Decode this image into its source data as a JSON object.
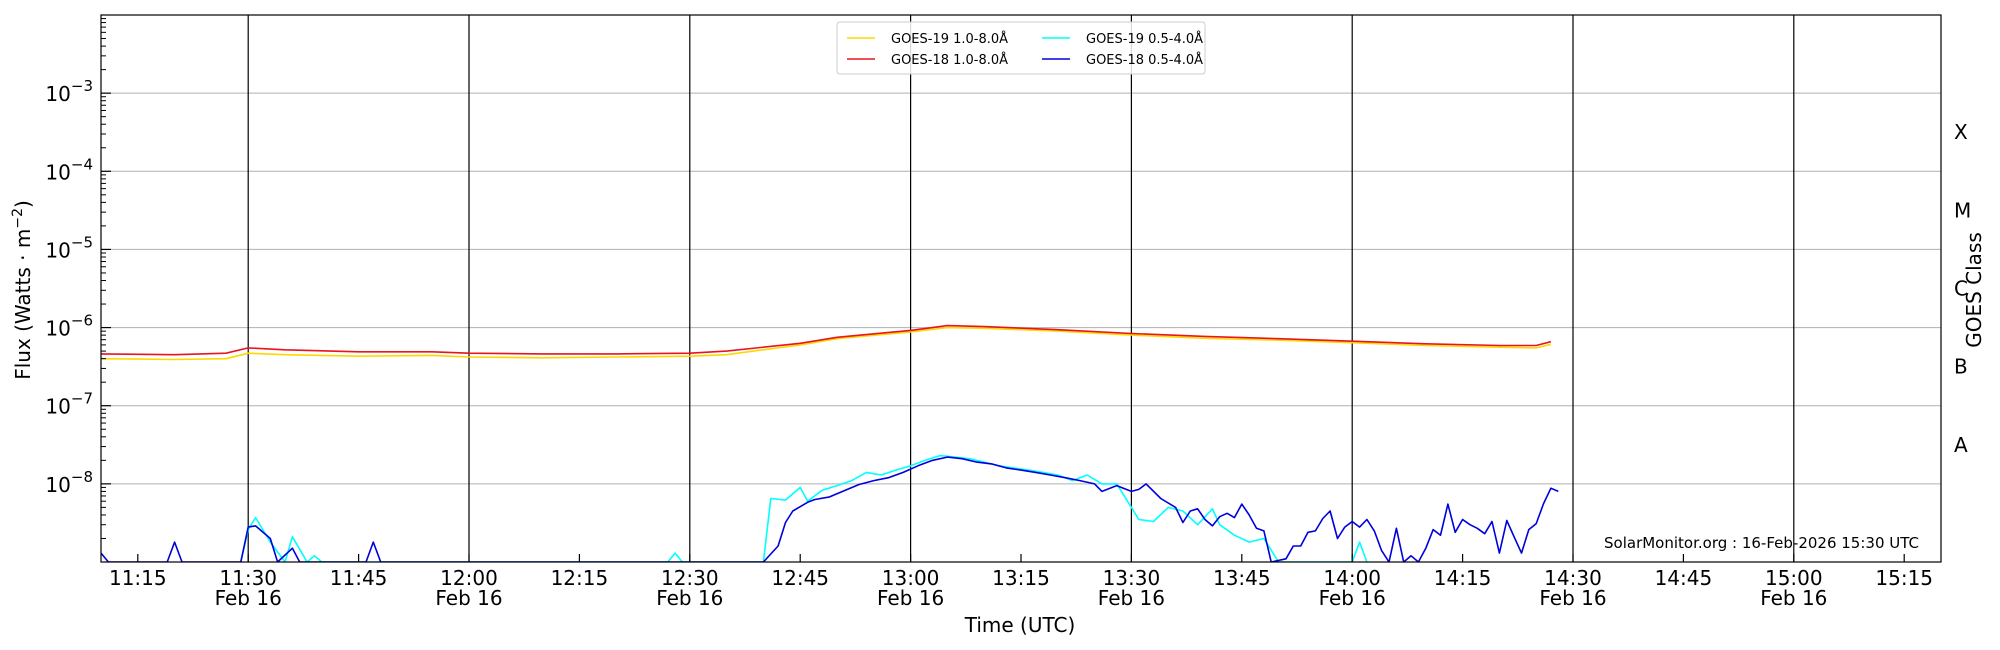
{
  "chart_data": {
    "type": "line",
    "xlabel": "Time (UTC)",
    "ylabel_parts": [
      "Flux (Watts · m",
      "−2",
      ")"
    ],
    "y2label": "GOES Class",
    "credit": "SolarMonitor.org : 16-Feb-2026 15:30 UTC",
    "y_scale": "log",
    "ylim": [
      1e-09,
      0.01
    ],
    "xlim": [
      "11:10",
      "15:20"
    ],
    "grid": "horizontal",
    "legend_position": "top-center",
    "x_ticks": [
      {
        "t": "11:15",
        "label": "11:15",
        "sub": ""
      },
      {
        "t": "11:30",
        "label": "11:30",
        "sub": "Feb 16"
      },
      {
        "t": "11:45",
        "label": "11:45",
        "sub": ""
      },
      {
        "t": "12:00",
        "label": "12:00",
        "sub": "Feb 16"
      },
      {
        "t": "12:15",
        "label": "12:15",
        "sub": ""
      },
      {
        "t": "12:30",
        "label": "12:30",
        "sub": "Feb 16"
      },
      {
        "t": "12:45",
        "label": "12:45",
        "sub": ""
      },
      {
        "t": "13:00",
        "label": "13:00",
        "sub": "Feb 16"
      },
      {
        "t": "13:15",
        "label": "13:15",
        "sub": ""
      },
      {
        "t": "13:30",
        "label": "13:30",
        "sub": "Feb 16"
      },
      {
        "t": "13:45",
        "label": "13:45",
        "sub": ""
      },
      {
        "t": "14:00",
        "label": "14:00",
        "sub": "Feb 16"
      },
      {
        "t": "14:15",
        "label": "14:15",
        "sub": ""
      },
      {
        "t": "14:30",
        "label": "14:30",
        "sub": "Feb 16"
      },
      {
        "t": "14:45",
        "label": "14:45",
        "sub": ""
      },
      {
        "t": "15:00",
        "label": "15:00",
        "sub": "Feb 16"
      },
      {
        "t": "15:15",
        "label": "15:15",
        "sub": ""
      }
    ],
    "y_ticks": [
      {
        "exp": -8,
        "label": "10",
        "sup": "−8"
      },
      {
        "exp": -7,
        "label": "10",
        "sup": "−7"
      },
      {
        "exp": -6,
        "label": "10",
        "sup": "−6"
      },
      {
        "exp": -5,
        "label": "10",
        "sup": "−5"
      },
      {
        "exp": -4,
        "label": "10",
        "sup": "−4"
      },
      {
        "exp": -3,
        "label": "10",
        "sup": "−3"
      }
    ],
    "goes_classes": [
      {
        "label": "A",
        "exp": -7.5
      },
      {
        "label": "B",
        "exp": -6.5
      },
      {
        "label": "C",
        "exp": -5.5
      },
      {
        "label": "M",
        "exp": -4.5
      },
      {
        "label": "X",
        "exp": -3.5
      }
    ],
    "vlines": [
      "11:30",
      "12:00",
      "12:30",
      "13:00",
      "13:30",
      "14:00",
      "14:30",
      "15:00"
    ],
    "colors": {
      "gold": "#FFD700",
      "red": "#E8141E",
      "cyan": "#00FFFF",
      "blue": "#0000DD",
      "grid": "#b0b0b0"
    },
    "series": [
      {
        "name": "GOES-19 1.0-8.0Å",
        "color": "#FFD700",
        "points": [
          [
            "11:10",
            4e-07
          ],
          [
            "11:20",
            3.9e-07
          ],
          [
            "11:27",
            4e-07
          ],
          [
            "11:30",
            4.7e-07
          ],
          [
            "11:35",
            4.5e-07
          ],
          [
            "11:45",
            4.3e-07
          ],
          [
            "11:55",
            4.4e-07
          ],
          [
            "12:00",
            4.2e-07
          ],
          [
            "12:10",
            4.1e-07
          ],
          [
            "12:20",
            4.2e-07
          ],
          [
            "12:30",
            4.3e-07
          ],
          [
            "12:35",
            4.5e-07
          ],
          [
            "12:45",
            6e-07
          ],
          [
            "12:50",
            7.2e-07
          ],
          [
            "13:00",
            8.8e-07
          ],
          [
            "13:05",
            1e-06
          ],
          [
            "13:10",
            9.8e-07
          ],
          [
            "13:20",
            9e-07
          ],
          [
            "13:30",
            8e-07
          ],
          [
            "13:40",
            7.3e-07
          ],
          [
            "13:50",
            6.9e-07
          ],
          [
            "14:00",
            6.4e-07
          ],
          [
            "14:10",
            5.9e-07
          ],
          [
            "14:20",
            5.6e-07
          ],
          [
            "14:25",
            5.5e-07
          ],
          [
            "14:27",
            6.1e-07
          ]
        ]
      },
      {
        "name": "GOES-18 1.0-8.0Å",
        "color": "#E8141E",
        "points": [
          [
            "11:10",
            4.6e-07
          ],
          [
            "11:20",
            4.5e-07
          ],
          [
            "11:27",
            4.7e-07
          ],
          [
            "11:30",
            5.5e-07
          ],
          [
            "11:35",
            5.2e-07
          ],
          [
            "11:45",
            4.9e-07
          ],
          [
            "11:55",
            4.9e-07
          ],
          [
            "12:00",
            4.7e-07
          ],
          [
            "12:10",
            4.6e-07
          ],
          [
            "12:20",
            4.6e-07
          ],
          [
            "12:30",
            4.7e-07
          ],
          [
            "12:35",
            5e-07
          ],
          [
            "12:45",
            6.3e-07
          ],
          [
            "12:50",
            7.5e-07
          ],
          [
            "13:00",
            9.2e-07
          ],
          [
            "13:05",
            1.06e-06
          ],
          [
            "13:10",
            1.03e-06
          ],
          [
            "13:20",
            9.4e-07
          ],
          [
            "13:30",
            8.4e-07
          ],
          [
            "13:40",
            7.7e-07
          ],
          [
            "13:50",
            7.2e-07
          ],
          [
            "14:00",
            6.7e-07
          ],
          [
            "14:10",
            6.2e-07
          ],
          [
            "14:20",
            5.9e-07
          ],
          [
            "14:25",
            5.9e-07
          ],
          [
            "14:27",
            6.6e-07
          ]
        ]
      },
      {
        "name": "GOES-19 0.5-4.0Å",
        "color": "#00FFFF",
        "points": [
          [
            "11:29",
            1e-09
          ],
          [
            "11:30",
            2.6e-09
          ],
          [
            "11:31",
            3.7e-09
          ],
          [
            "11:33",
            1.8e-09
          ],
          [
            "11:35",
            1e-09
          ],
          [
            "11:36",
            2.1e-09
          ],
          [
            "11:38",
            1e-09
          ],
          [
            "11:39",
            1.2e-09
          ],
          [
            "11:40",
            1e-09
          ],
          [
            "12:27",
            1e-09
          ],
          [
            "12:28",
            1.3e-09
          ],
          [
            "12:29",
            1e-09
          ],
          [
            "12:40",
            1e-09
          ],
          [
            "12:41",
            6.5e-09
          ],
          [
            "12:43",
            6.2e-09
          ],
          [
            "12:45",
            9e-09
          ],
          [
            "12:46",
            6e-09
          ],
          [
            "12:48",
            8.3e-09
          ],
          [
            "12:50",
            9.5e-09
          ],
          [
            "12:52",
            1.1e-08
          ],
          [
            "12:54",
            1.4e-08
          ],
          [
            "12:56",
            1.3e-08
          ],
          [
            "12:58",
            1.5e-08
          ],
          [
            "13:00",
            1.7e-08
          ],
          [
            "13:02",
            2e-08
          ],
          [
            "13:04",
            2.3e-08
          ],
          [
            "13:06",
            2.2e-08
          ],
          [
            "13:08",
            2.1e-08
          ],
          [
            "13:10",
            1.9e-08
          ],
          [
            "13:12",
            1.7e-08
          ],
          [
            "13:14",
            1.6e-08
          ],
          [
            "13:16",
            1.5e-08
          ],
          [
            "13:18",
            1.4e-08
          ],
          [
            "13:20",
            1.3e-08
          ],
          [
            "13:22",
            1.1e-08
          ],
          [
            "13:24",
            1.3e-08
          ],
          [
            "13:26",
            1e-08
          ],
          [
            "13:28",
            1e-08
          ],
          [
            "13:30",
            5e-09
          ],
          [
            "13:31",
            3.5e-09
          ],
          [
            "13:33",
            3.3e-09
          ],
          [
            "13:35",
            5e-09
          ],
          [
            "13:37",
            4.5e-09
          ],
          [
            "13:39",
            3e-09
          ],
          [
            "13:41",
            4.8e-09
          ],
          [
            "13:42",
            3e-09
          ],
          [
            "13:44",
            2.2e-09
          ],
          [
            "13:46",
            1.8e-09
          ],
          [
            "13:48",
            2e-09
          ],
          [
            "13:50",
            1e-09
          ],
          [
            "14:00",
            1e-09
          ],
          [
            "14:01",
            1.8e-09
          ],
          [
            "14:02",
            1e-09
          ]
        ]
      },
      {
        "name": "GOES-18 0.5-4.0Å",
        "color": "#0000DD",
        "points": [
          [
            "11:10",
            1.3e-09
          ],
          [
            "11:11",
            1e-09
          ],
          [
            "11:19",
            1e-09
          ],
          [
            "11:20",
            1.8e-09
          ],
          [
            "11:21",
            1e-09
          ],
          [
            "11:29",
            1e-09
          ],
          [
            "11:30",
            2.8e-09
          ],
          [
            "11:31",
            2.9e-09
          ],
          [
            "11:33",
            2e-09
          ],
          [
            "11:34",
            1e-09
          ],
          [
            "11:36",
            1.5e-09
          ],
          [
            "11:37",
            1e-09
          ],
          [
            "11:46",
            1e-09
          ],
          [
            "11:47",
            1.8e-09
          ],
          [
            "11:48",
            1e-09
          ],
          [
            "12:40",
            1e-09
          ],
          [
            "12:42",
            1.6e-09
          ],
          [
            "12:43",
            3.2e-09
          ],
          [
            "12:44",
            4.5e-09
          ],
          [
            "12:46",
            5.8e-09
          ],
          [
            "12:47",
            6.3e-09
          ],
          [
            "12:49",
            6.8e-09
          ],
          [
            "12:51",
            8.2e-09
          ],
          [
            "12:53",
            9.8e-09
          ],
          [
            "12:55",
            1.1e-08
          ],
          [
            "12:57",
            1.2e-08
          ],
          [
            "12:59",
            1.4e-08
          ],
          [
            "13:01",
            1.7e-08
          ],
          [
            "13:03",
            2e-08
          ],
          [
            "13:05",
            2.2e-08
          ],
          [
            "13:07",
            2.1e-08
          ],
          [
            "13:09",
            1.9e-08
          ],
          [
            "13:11",
            1.8e-08
          ],
          [
            "13:13",
            1.6e-08
          ],
          [
            "13:15",
            1.5e-08
          ],
          [
            "13:17",
            1.4e-08
          ],
          [
            "13:19",
            1.3e-08
          ],
          [
            "13:21",
            1.2e-08
          ],
          [
            "13:23",
            1.1e-08
          ],
          [
            "13:25",
            1e-08
          ],
          [
            "13:26",
            8e-09
          ],
          [
            "13:28",
            9.5e-09
          ],
          [
            "13:30",
            8e-09
          ],
          [
            "13:31",
            8.5e-09
          ],
          [
            "13:32",
            1e-08
          ],
          [
            "13:34",
            6.5e-09
          ],
          [
            "13:36",
            5e-09
          ],
          [
            "13:37",
            3.2e-09
          ],
          [
            "13:38",
            4.5e-09
          ],
          [
            "13:39",
            4.8e-09
          ],
          [
            "13:40",
            3.5e-09
          ],
          [
            "13:41",
            2.9e-09
          ],
          [
            "13:42",
            3.8e-09
          ],
          [
            "13:43",
            4.2e-09
          ],
          [
            "13:44",
            3.7e-09
          ],
          [
            "13:45",
            5.5e-09
          ],
          [
            "13:46",
            4e-09
          ],
          [
            "13:47",
            2.7e-09
          ],
          [
            "13:48",
            2.5e-09
          ],
          [
            "13:49",
            1e-09
          ],
          [
            "13:51",
            1.1e-09
          ],
          [
            "13:52",
            1.6e-09
          ],
          [
            "13:53",
            1.6e-09
          ],
          [
            "13:54",
            2.4e-09
          ],
          [
            "13:55",
            2.5e-09
          ],
          [
            "13:56",
            3.6e-09
          ],
          [
            "13:57",
            4.5e-09
          ],
          [
            "13:58",
            2e-09
          ],
          [
            "13:59",
            2.8e-09
          ],
          [
            "14:00",
            3.3e-09
          ],
          [
            "14:01",
            2.8e-09
          ],
          [
            "14:02",
            3.5e-09
          ],
          [
            "14:03",
            2.5e-09
          ],
          [
            "14:04",
            1.4e-09
          ],
          [
            "14:05",
            1e-09
          ],
          [
            "14:06",
            2.7e-09
          ],
          [
            "14:07",
            1e-09
          ],
          [
            "14:08",
            1.2e-09
          ],
          [
            "14:09",
            1e-09
          ],
          [
            "14:10",
            1.5e-09
          ],
          [
            "14:11",
            2.6e-09
          ],
          [
            "14:12",
            2.2e-09
          ],
          [
            "14:13",
            5.5e-09
          ],
          [
            "14:14",
            2.4e-09
          ],
          [
            "14:15",
            3.5e-09
          ],
          [
            "14:16",
            3e-09
          ],
          [
            "14:17",
            2.7e-09
          ],
          [
            "14:18",
            2.3e-09
          ],
          [
            "14:19",
            3.3e-09
          ],
          [
            "14:20",
            1.3e-09
          ],
          [
            "14:21",
            3.4e-09
          ],
          [
            "14:22",
            2.1e-09
          ],
          [
            "14:23",
            1.3e-09
          ],
          [
            "14:24",
            2.6e-09
          ],
          [
            "14:25",
            3.1e-09
          ],
          [
            "14:26",
            5.6e-09
          ],
          [
            "14:27",
            8.8e-09
          ],
          [
            "14:28",
            8e-09
          ]
        ]
      }
    ]
  }
}
